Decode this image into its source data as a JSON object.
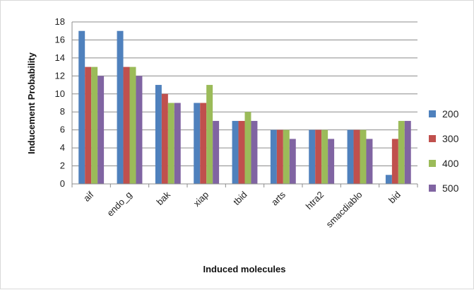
{
  "chart_data": {
    "type": "bar",
    "categories": [
      "aif",
      "endo_g",
      "bak",
      "xiap",
      "tbid",
      "arts",
      "htra2",
      "smacdiablo",
      "bid"
    ],
    "series": [
      {
        "name": "200",
        "color": "#4f81bd",
        "values": [
          17,
          17,
          11,
          9,
          7,
          6,
          6,
          6,
          1
        ]
      },
      {
        "name": "300",
        "color": "#c0504d",
        "values": [
          13,
          13,
          10,
          9,
          7,
          6,
          6,
          6,
          5
        ]
      },
      {
        "name": "400",
        "color": "#9bbb59",
        "values": [
          13,
          13,
          9,
          11,
          8,
          6,
          6,
          6,
          7
        ]
      },
      {
        "name": "500",
        "color": "#8064a2",
        "values": [
          12,
          12,
          9,
          7,
          7,
          5,
          5,
          5,
          7
        ]
      }
    ],
    "xlabel": "Induced molecules",
    "ylabel": "Inducement Probability",
    "ylim": [
      0,
      18
    ],
    "yticks": [
      0,
      2,
      4,
      6,
      8,
      10,
      12,
      14,
      16,
      18
    ],
    "grid": true,
    "legend_position": "right"
  }
}
